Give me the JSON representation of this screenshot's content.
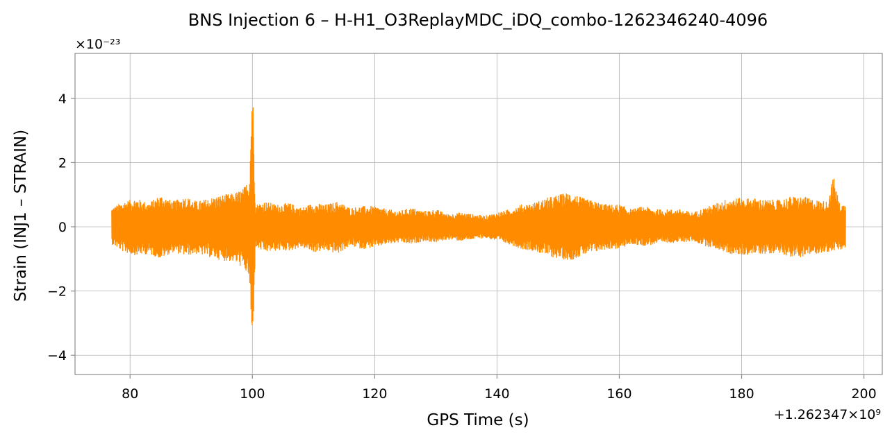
{
  "chart_data": {
    "type": "line",
    "title": "BNS Injection 6 – H-H1_O3ReplayMDC_iDQ_combo-1262346240-4096",
    "xlabel": "GPS Time (s)",
    "ylabel": "Strain (INJ1 – STRAIN)",
    "x_offset_label": "+1.262347×10⁹",
    "y_scale_label": "×10⁻²³",
    "xlim": [
      71,
      203
    ],
    "ylim": [
      -4.6,
      5.4
    ],
    "xticks": [
      80,
      100,
      120,
      140,
      160,
      180,
      200
    ],
    "yticks": [
      -4,
      -2,
      0,
      2,
      4
    ],
    "xtick_labels": [
      "80",
      "100",
      "120",
      "140",
      "160",
      "180",
      "200"
    ],
    "ytick_labels": [
      "−4",
      "−2",
      "0",
      "2",
      "4"
    ],
    "grid": true,
    "series": [
      {
        "color": "#ff8c00",
        "x_range": [
          77,
          197
        ],
        "envelope": {
          "x": [
            77,
            79,
            81,
            83,
            85,
            87,
            89,
            91,
            93,
            95,
            97,
            98.5,
            99.5,
            100,
            100.5,
            102,
            104,
            106,
            108,
            110,
            112,
            114,
            116,
            118,
            120,
            122,
            124,
            126,
            128,
            130,
            132,
            134,
            136,
            138,
            140,
            142,
            144,
            146,
            148,
            150,
            152,
            154,
            156,
            158,
            160,
            162,
            164,
            166,
            168,
            170,
            172,
            174,
            176,
            178,
            180,
            182,
            184,
            186,
            188,
            190,
            192,
            194,
            195,
            196,
            197
          ],
          "upper": [
            0.6,
            0.8,
            0.9,
            0.75,
            1.0,
            0.8,
            0.95,
            0.8,
            0.9,
            1.0,
            1.05,
            1.2,
            1.5,
            4.9,
            0.7,
            0.8,
            0.7,
            0.75,
            0.6,
            0.75,
            0.7,
            0.8,
            0.6,
            0.65,
            0.65,
            0.55,
            0.5,
            0.6,
            0.5,
            0.55,
            0.4,
            0.45,
            0.4,
            0.35,
            0.45,
            0.55,
            0.7,
            0.75,
            0.9,
            1.0,
            1.1,
            0.9,
            0.8,
            0.7,
            0.7,
            0.55,
            0.65,
            0.55,
            0.55,
            0.55,
            0.45,
            0.6,
            0.75,
            0.9,
            0.9,
            0.9,
            0.85,
            0.85,
            0.95,
            0.95,
            0.85,
            0.8,
            1.6,
            0.75,
            0.7
          ],
          "lower": [
            -0.55,
            -0.8,
            -0.9,
            -0.85,
            -1.0,
            -0.8,
            -0.9,
            -0.85,
            -0.95,
            -1.05,
            -1.1,
            -1.3,
            -1.6,
            -4.2,
            -0.65,
            -0.8,
            -0.75,
            -0.75,
            -0.65,
            -0.8,
            -0.75,
            -0.85,
            -0.6,
            -0.7,
            -0.65,
            -0.55,
            -0.5,
            -0.55,
            -0.45,
            -0.5,
            -0.4,
            -0.45,
            -0.4,
            -0.35,
            -0.45,
            -0.55,
            -0.7,
            -0.75,
            -0.9,
            -1.0,
            -1.05,
            -0.9,
            -0.8,
            -0.7,
            -0.7,
            -0.55,
            -0.6,
            -0.55,
            -0.5,
            -0.5,
            -0.45,
            -0.6,
            -0.7,
            -0.85,
            -0.9,
            -0.85,
            -0.85,
            -0.8,
            -0.95,
            -0.95,
            -0.85,
            -0.8,
            -0.75,
            -0.75,
            -0.7
          ]
        }
      }
    ]
  }
}
